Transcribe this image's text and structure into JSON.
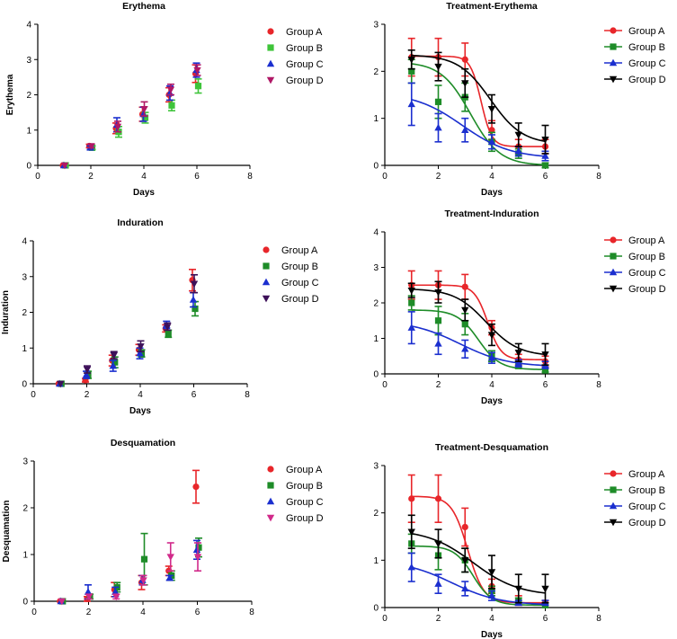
{
  "chart_data": [
    {
      "id": "erythema",
      "type": "scatter",
      "title": "Erythema",
      "xlabel": "Days",
      "ylabel": "Erythema",
      "xlim": [
        0,
        8
      ],
      "xticks": [
        0,
        2,
        4,
        6,
        8
      ],
      "ylim": [
        0,
        4
      ],
      "yticks": [
        0,
        1,
        2,
        3,
        4
      ],
      "legend": "top-right",
      "series": [
        {
          "name": "Group A",
          "color": "#e8262a",
          "marker": "circle",
          "x": [
            1,
            2,
            3,
            4,
            5,
            6
          ],
          "y": [
            0,
            0.55,
            1.05,
            1.45,
            2.0,
            2.6
          ],
          "err": [
            0,
            0.05,
            0.15,
            0.2,
            0.2,
            0.25
          ]
        },
        {
          "name": "Group B",
          "color": "#3ec43a",
          "marker": "square",
          "x": [
            1,
            2,
            3,
            4,
            5,
            6
          ],
          "y": [
            0,
            0.5,
            0.95,
            1.35,
            1.7,
            2.25
          ],
          "err": [
            0,
            0.05,
            0.15,
            0.15,
            0.15,
            0.2
          ]
        },
        {
          "name": "Group C",
          "color": "#1b2fcf",
          "marker": "triangle-up",
          "x": [
            1,
            2,
            3,
            4,
            5,
            6
          ],
          "y": [
            0,
            0.5,
            1.15,
            1.45,
            2.05,
            2.7
          ],
          "err": [
            0,
            0.05,
            0.2,
            0.2,
            0.2,
            0.2
          ]
        },
        {
          "name": "Group D",
          "color": "#b01866",
          "marker": "triangle-down",
          "x": [
            1,
            2,
            3,
            4,
            5,
            6
          ],
          "y": [
            0,
            0.55,
            1.1,
            1.6,
            2.15,
            2.7
          ],
          "err": [
            0,
            0.05,
            0.15,
            0.2,
            0.15,
            0.15
          ]
        }
      ]
    },
    {
      "id": "treatment-erythema",
      "type": "line",
      "title": "Treatment-Erythema",
      "xlabel": "Days",
      "ylabel": "",
      "xlim": [
        0,
        8
      ],
      "xticks": [
        0,
        2,
        4,
        6,
        8
      ],
      "ylim": [
        0,
        3
      ],
      "yticks": [
        0,
        1,
        2,
        3
      ],
      "legend": "top-right",
      "series": [
        {
          "name": "Group A",
          "color": "#e8262a",
          "marker": "circle",
          "x": [
            1,
            2,
            3,
            4,
            5,
            6
          ],
          "y": [
            2.3,
            2.3,
            2.25,
            0.75,
            0.4,
            0.4
          ],
          "err": [
            0.4,
            0.4,
            0.35,
            0.2,
            0.15,
            0.15
          ],
          "curve": {
            "top": 2.32,
            "bottom": 0.4,
            "x50": 3.6,
            "slope": 0.2
          }
        },
        {
          "name": "Group B",
          "color": "#1e8c28",
          "marker": "square",
          "x": [
            1,
            2,
            3,
            4,
            5,
            6
          ],
          "y": [
            2.0,
            1.35,
            1.45,
            0.5,
            0.25,
            0.0
          ],
          "err": [
            0.25,
            0.35,
            0.3,
            0.2,
            0.1,
            0.05
          ],
          "curve": {
            "top": 2.2,
            "bottom": 0.0,
            "x50": 3.2,
            "slope": 0.55
          }
        },
        {
          "name": "Group C",
          "color": "#1b2fcf",
          "marker": "triangle-up",
          "x": [
            1,
            2,
            3,
            4,
            5,
            6
          ],
          "y": [
            1.3,
            0.8,
            0.75,
            0.5,
            0.3,
            0.2
          ],
          "err": [
            0.45,
            0.3,
            0.25,
            0.15,
            0.1,
            0.1
          ],
          "curve": {
            "top": 1.55,
            "bottom": 0.15,
            "x50": 2.9,
            "slope": 0.9
          }
        },
        {
          "name": "Group D",
          "color": "#000000",
          "marker": "triangle-down",
          "x": [
            1,
            2,
            3,
            4,
            5,
            6
          ],
          "y": [
            2.25,
            2.1,
            1.75,
            1.2,
            0.65,
            0.55
          ],
          "err": [
            0.2,
            0.3,
            0.3,
            0.3,
            0.25,
            0.3
          ],
          "curve": {
            "top": 2.35,
            "bottom": 0.45,
            "x50": 3.95,
            "slope": 0.6
          }
        }
      ]
    },
    {
      "id": "induration",
      "type": "scatter",
      "title": "Induration",
      "xlabel": "Days",
      "ylabel": "Induration",
      "xlim": [
        0,
        8
      ],
      "xticks": [
        0,
        2,
        4,
        6,
        8
      ],
      "ylim": [
        0,
        4
      ],
      "yticks": [
        0,
        1,
        2,
        3,
        4
      ],
      "legend": "top-right",
      "series": [
        {
          "name": "Group A",
          "color": "#e8262a",
          "marker": "circle",
          "x": [
            1,
            2,
            3,
            4,
            5,
            6
          ],
          "y": [
            0,
            0.1,
            0.65,
            0.95,
            1.55,
            2.9
          ],
          "err": [
            0,
            0.05,
            0.15,
            0.15,
            0.1,
            0.3
          ]
        },
        {
          "name": "Group B",
          "color": "#1e8c28",
          "marker": "square",
          "x": [
            1,
            2,
            3,
            4,
            5,
            6
          ],
          "y": [
            0,
            0.25,
            0.6,
            0.85,
            1.4,
            2.1
          ],
          "err": [
            0,
            0.1,
            0.15,
            0.1,
            0.1,
            0.2
          ]
        },
        {
          "name": "Group C",
          "color": "#1b2fcf",
          "marker": "triangle-up",
          "x": [
            1,
            2,
            3,
            4,
            5,
            6
          ],
          "y": [
            0,
            0.25,
            0.5,
            0.85,
            1.65,
            2.35
          ],
          "err": [
            0,
            0.1,
            0.15,
            0.15,
            0.1,
            0.2
          ]
        },
        {
          "name": "Group D",
          "color": "#3d1059",
          "marker": "triangle-down",
          "x": [
            1,
            2,
            3,
            4,
            5,
            6
          ],
          "y": [
            0,
            0.4,
            0.8,
            1.05,
            1.6,
            2.8
          ],
          "err": [
            0,
            0.1,
            0.1,
            0.15,
            0.1,
            0.25
          ]
        }
      ]
    },
    {
      "id": "treatment-induration",
      "type": "line",
      "title": "Treatment-Induration",
      "xlabel": "Days",
      "ylabel": "",
      "xlim": [
        0,
        8
      ],
      "xticks": [
        0,
        2,
        4,
        6,
        8
      ],
      "ylim": [
        0,
        4
      ],
      "yticks": [
        0,
        1,
        2,
        3,
        4
      ],
      "legend": "top-right",
      "series": [
        {
          "name": "Group A",
          "color": "#e8262a",
          "marker": "circle",
          "x": [
            1,
            2,
            3,
            4,
            5,
            6
          ],
          "y": [
            2.5,
            2.5,
            2.45,
            1.3,
            0.4,
            0.35
          ],
          "err": [
            0.4,
            0.4,
            0.35,
            0.2,
            0.15,
            0.15
          ],
          "curve": {
            "top": 2.5,
            "bottom": 0.4,
            "x50": 3.85,
            "slope": 0.25
          }
        },
        {
          "name": "Group B",
          "color": "#1e8c28",
          "marker": "square",
          "x": [
            1,
            2,
            3,
            4,
            5,
            6
          ],
          "y": [
            2.0,
            1.5,
            1.4,
            0.5,
            0.25,
            0.1
          ],
          "err": [
            0.2,
            0.4,
            0.3,
            0.15,
            0.1,
            0.05
          ],
          "curve": {
            "top": 1.8,
            "bottom": 0.12,
            "x50": 3.5,
            "slope": 0.4
          }
        },
        {
          "name": "Group C",
          "color": "#1b2fcf",
          "marker": "triangle-up",
          "x": [
            1,
            2,
            3,
            4,
            5,
            6
          ],
          "y": [
            1.3,
            0.85,
            0.7,
            0.45,
            0.3,
            0.25
          ],
          "err": [
            0.45,
            0.3,
            0.25,
            0.15,
            0.1,
            0.1
          ],
          "curve": {
            "top": 1.5,
            "bottom": 0.2,
            "x50": 2.8,
            "slope": 0.9
          }
        },
        {
          "name": "Group D",
          "color": "#000000",
          "marker": "triangle-down",
          "x": [
            1,
            2,
            3,
            4,
            5,
            6
          ],
          "y": [
            2.35,
            2.3,
            1.8,
            1.1,
            0.6,
            0.55
          ],
          "err": [
            0.2,
            0.3,
            0.3,
            0.3,
            0.25,
            0.3
          ],
          "curve": {
            "top": 2.4,
            "bottom": 0.5,
            "x50": 3.8,
            "slope": 0.6
          }
        }
      ]
    },
    {
      "id": "desquamation",
      "type": "scatter",
      "title": "Desquamation",
      "xlabel": "",
      "ylabel": "Desquamation",
      "xlim": [
        0,
        8
      ],
      "xticks": [
        0,
        2,
        4,
        6,
        8
      ],
      "ylim": [
        0,
        3
      ],
      "yticks": [
        0,
        1,
        2,
        3
      ],
      "legend": "top-right",
      "series": [
        {
          "name": "Group A",
          "color": "#e8262a",
          "marker": "circle",
          "x": [
            1,
            2,
            3,
            4,
            5,
            6
          ],
          "y": [
            0,
            0.05,
            0.25,
            0.4,
            0.65,
            2.45
          ],
          "err": [
            0,
            0.05,
            0.15,
            0.15,
            0.1,
            0.35
          ]
        },
        {
          "name": "Group B",
          "color": "#1e8c28",
          "marker": "square",
          "x": [
            1,
            2,
            3,
            4,
            5,
            6
          ],
          "y": [
            0,
            0.1,
            0.3,
            0.9,
            0.55,
            1.15
          ],
          "err": [
            0,
            0.05,
            0.1,
            0.55,
            0.1,
            0.2
          ]
        },
        {
          "name": "Group C",
          "color": "#1b2fcf",
          "marker": "triangle-up",
          "x": [
            1,
            2,
            3,
            4,
            5,
            6
          ],
          "y": [
            0,
            0.2,
            0.2,
            0.45,
            0.5,
            1.1
          ],
          "err": [
            0,
            0.15,
            0.1,
            0.1,
            0.05,
            0.2
          ]
        },
        {
          "name": "Group D",
          "color": "#d12a8a",
          "marker": "triangle-down",
          "x": [
            1,
            2,
            3,
            4,
            5,
            6
          ],
          "y": [
            0,
            0.1,
            0.1,
            0.45,
            0.95,
            0.95
          ],
          "err": [
            0,
            0.05,
            0.05,
            0.1,
            0.3,
            0.3
          ]
        }
      ]
    },
    {
      "id": "treatment-desquamation",
      "type": "line",
      "title": "Treatment-Desquamation",
      "xlabel": "Days",
      "ylabel": "",
      "xlim": [
        0,
        8
      ],
      "xticks": [
        0,
        2,
        4,
        6,
        8
      ],
      "ylim": [
        0,
        3
      ],
      "yticks": [
        0,
        1,
        2,
        3
      ],
      "legend": "top-right",
      "series": [
        {
          "name": "Group A",
          "color": "#e8262a",
          "marker": "circle",
          "x": [
            1,
            2,
            3,
            4,
            5,
            6
          ],
          "y": [
            2.3,
            2.3,
            1.7,
            0.45,
            0.15,
            0.1
          ],
          "err": [
            0.5,
            0.5,
            0.4,
            0.15,
            0.1,
            0.05
          ],
          "curve": {
            "top": 2.35,
            "bottom": 0.1,
            "x50": 3.1,
            "slope": 0.3
          }
        },
        {
          "name": "Group B",
          "color": "#1e8c28",
          "marker": "square",
          "x": [
            1,
            2,
            3,
            4,
            5,
            6
          ],
          "y": [
            1.35,
            1.1,
            1.0,
            0.35,
            0.15,
            0.05
          ],
          "err": [
            0.2,
            0.3,
            0.25,
            0.1,
            0.05,
            0.05
          ],
          "curve": {
            "top": 1.3,
            "bottom": 0.05,
            "x50": 3.3,
            "slope": 0.35
          }
        },
        {
          "name": "Group C",
          "color": "#1b2fcf",
          "marker": "triangle-up",
          "x": [
            1,
            2,
            3,
            4,
            5,
            6
          ],
          "y": [
            0.85,
            0.5,
            0.4,
            0.25,
            0.1,
            0.1
          ],
          "err": [
            0.3,
            0.2,
            0.15,
            0.1,
            0.05,
            0.05
          ],
          "curve": {
            "top": 1.0,
            "bottom": 0.05,
            "x50": 2.5,
            "slope": 0.9
          }
        },
        {
          "name": "Group D",
          "color": "#000000",
          "marker": "triangle-down",
          "x": [
            1,
            2,
            3,
            4,
            5,
            6
          ],
          "y": [
            1.6,
            1.35,
            1.0,
            0.75,
            0.4,
            0.4
          ],
          "err": [
            0.35,
            0.3,
            0.25,
            0.35,
            0.3,
            0.3
          ],
          "curve": {
            "top": 1.65,
            "bottom": 0.25,
            "x50": 3.3,
            "slope": 0.85
          }
        }
      ]
    }
  ]
}
